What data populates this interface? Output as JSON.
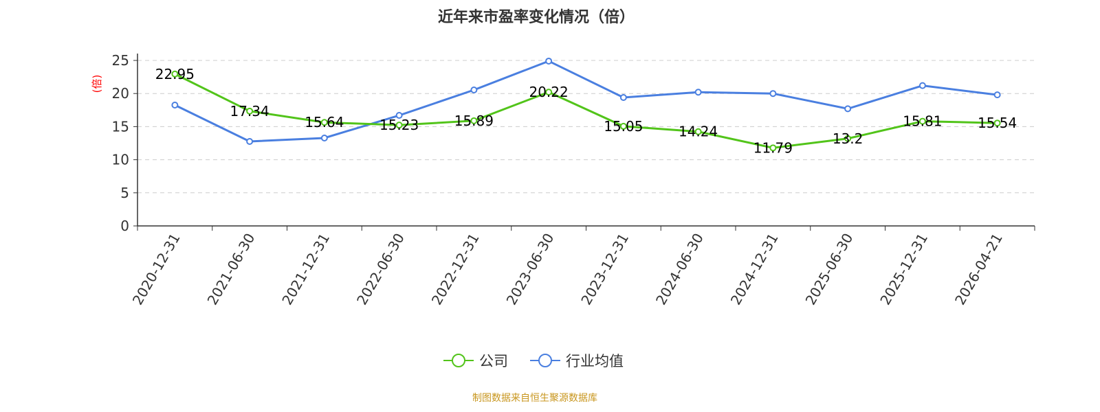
{
  "chart_data": {
    "type": "line",
    "title": "近年来市盈率变化情况（倍）",
    "ylabel": "(倍)",
    "xlabel": "",
    "ylim": [
      0,
      25
    ],
    "yticks": [
      0,
      5,
      10,
      15,
      20,
      25
    ],
    "grid": true,
    "legend_position": "bottom-center",
    "categories": [
      "2020-12-31",
      "2021-06-30",
      "2021-12-31",
      "2022-06-30",
      "2022-12-31",
      "2023-06-30",
      "2023-12-31",
      "2024-06-30",
      "2024-12-31",
      "2025-06-30",
      "2025-12-31",
      "2026-04-21"
    ],
    "series": [
      {
        "name": "公司",
        "color": "#52c41a",
        "show_labels": true,
        "values": [
          22.95,
          17.34,
          15.64,
          15.23,
          15.89,
          20.22,
          15.05,
          14.24,
          11.79,
          13.2,
          15.81,
          15.54
        ]
      },
      {
        "name": "行业均值",
        "color": "#4a7fe0",
        "show_labels": false,
        "values": [
          18.26,
          12.76,
          13.28,
          16.7,
          20.54,
          24.9,
          19.4,
          20.2,
          20.0,
          17.7,
          21.2,
          19.8
        ]
      }
    ],
    "source": "制图数据来自恒生聚源数据库"
  }
}
